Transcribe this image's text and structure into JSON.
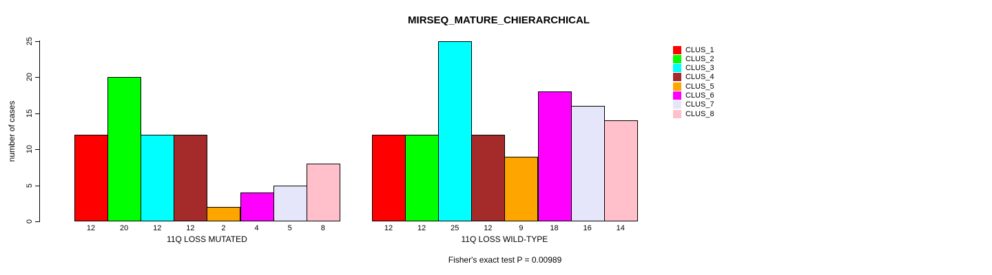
{
  "title": "MIRSEQ_MATURE_CHIERARCHICAL",
  "ylabel": "number of cases",
  "annotation": "Fisher's exact test P = 0.00989",
  "chart_data": {
    "type": "bar",
    "title": "MIRSEQ_MATURE_CHIERARCHICAL",
    "ylabel": "number of cases",
    "xlabel": "",
    "ylim": [
      0,
      25
    ],
    "yticks": [
      0,
      5,
      10,
      15,
      20,
      25
    ],
    "grid": false,
    "legend_position": "right",
    "categories": [
      "CLUS_1",
      "CLUS_2",
      "CLUS_3",
      "CLUS_4",
      "CLUS_5",
      "CLUS_6",
      "CLUS_7",
      "CLUS_8"
    ],
    "colors": [
      "#FF0000",
      "#00FF00",
      "#00FFFF",
      "#A52A2A",
      "#FFA500",
      "#FF00FF",
      "#E6E6FA",
      "#FFC0CB"
    ],
    "groups": [
      {
        "label": "11Q LOSS MUTATED",
        "values": [
          12,
          20,
          12,
          12,
          2,
          4,
          5,
          8
        ]
      },
      {
        "label": "11Q LOSS WILD-TYPE",
        "values": [
          12,
          12,
          25,
          12,
          9,
          18,
          16,
          14
        ]
      }
    ],
    "legend": [
      {
        "label": "CLUS_1",
        "color": "#FF0000"
      },
      {
        "label": "CLUS_2",
        "color": "#00FF00"
      },
      {
        "label": "CLUS_3",
        "color": "#00FFFF"
      },
      {
        "label": "CLUS_4",
        "color": "#A52A2A"
      },
      {
        "label": "CLUS_5",
        "color": "#FFA500"
      },
      {
        "label": "CLUS_6",
        "color": "#FF00FF"
      },
      {
        "label": "CLUS_7",
        "color": "#E6E6FA"
      },
      {
        "label": "CLUS_8",
        "color": "#FFC0CB"
      }
    ],
    "annotation": "Fisher's exact test P = 0.00989"
  }
}
